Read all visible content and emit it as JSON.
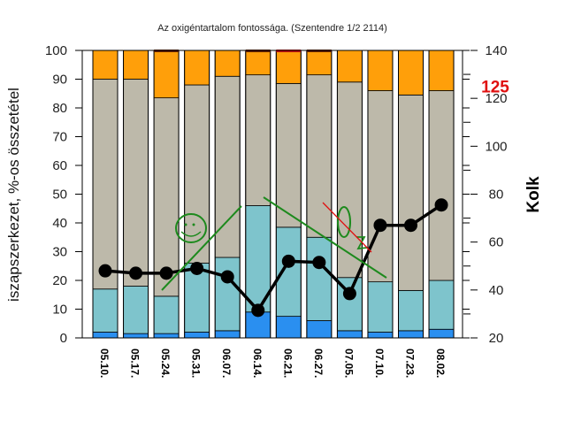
{
  "chart_data": {
    "type": "bar",
    "title": "Az oxigéntartalom fontossága. (Szentendre 1/2 2114)",
    "ylabel": "iszapszerkezet, %-os összetétel",
    "y2label": "Kolk",
    "ylim": [
      0,
      100
    ],
    "y2lim": [
      20,
      140
    ],
    "yticks": [
      0,
      10,
      20,
      30,
      40,
      50,
      60,
      70,
      80,
      90,
      100
    ],
    "y2ticks": [
      20,
      40,
      60,
      80,
      100,
      120,
      140
    ],
    "y2_highlight": {
      "value": 125,
      "label": "125",
      "color": "#e01010"
    },
    "categories": [
      "05.10.",
      "05.17.",
      "05.24.",
      "05.31.",
      "06.07.",
      "06.14.",
      "06.21.",
      "06.27.",
      "07.05.",
      "07.10.",
      "07.23.",
      "08.02."
    ],
    "stack_series": [
      {
        "color": "#2a8ff0",
        "values": [
          2,
          1.5,
          1.5,
          2,
          2.5,
          9,
          7.5,
          6,
          2.5,
          2,
          2.5,
          3
        ]
      },
      {
        "color": "#7ec4cc",
        "values": [
          15,
          16.5,
          13,
          24,
          25.5,
          37,
          31,
          29,
          18.5,
          17.5,
          14,
          17
        ]
      },
      {
        "color": "#bdb9aa",
        "values": [
          73,
          72,
          69,
          62,
          63,
          45.5,
          50,
          56.5,
          68,
          66.5,
          68,
          66
        ]
      },
      {
        "color": "#ff9f0a",
        "values": [
          10,
          10,
          16.5,
          12,
          9,
          8,
          11,
          8.5,
          11,
          14,
          15.5,
          14
        ]
      }
    ],
    "top_marks": [
      {
        "category": "05.24.",
        "color": "#602000"
      },
      {
        "category": "06.14.",
        "color": "#602000"
      },
      {
        "category": "06.21.",
        "color": "#c01010"
      },
      {
        "category": "06.27.",
        "color": "#602000"
      }
    ],
    "line_series": {
      "axis": "right",
      "color": "#000000",
      "values": [
        48,
        47,
        47,
        49,
        45.5,
        31.5,
        52,
        51.5,
        38.5,
        67,
        67,
        75.5
      ]
    },
    "grid": false,
    "legend": "none"
  }
}
